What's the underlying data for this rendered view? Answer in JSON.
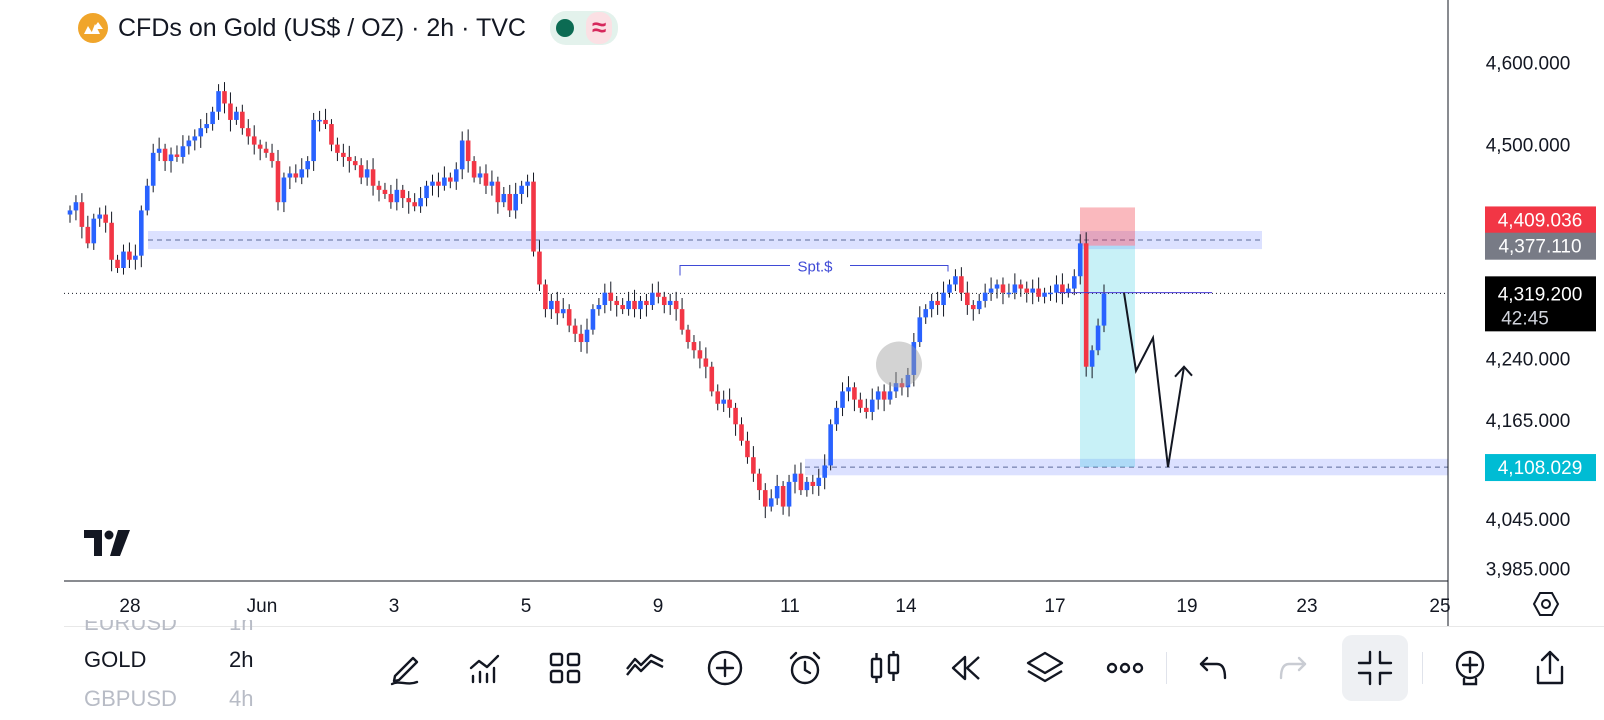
{
  "header": {
    "title": "CFDs on Gold (US$ / OZ) · 2h · TVC",
    "status_color": "#0c6b53",
    "wave_glyph": "≈"
  },
  "chart_data": {
    "type": "candlestick",
    "ylim": [
      3960,
      4640
    ],
    "price_ticks": [
      "4,600.000",
      "4,500.000",
      "4,240.000",
      "4,165.000",
      "4,045.000",
      "3,985.000"
    ],
    "price_tick_values": [
      4600,
      4500,
      4240,
      4165,
      4045,
      3985
    ],
    "date_ticks": [
      "28",
      "Jun",
      "3",
      "5",
      "9",
      "11",
      "14",
      "17",
      "19",
      "23",
      "25"
    ],
    "price_labels": [
      {
        "text": "4,409.036",
        "value": 4409.036,
        "color": "#f23645"
      },
      {
        "text": "4,377.110",
        "value": 4377.11,
        "color": "#787b86"
      },
      {
        "text": "4,108.029",
        "value": 4108.029,
        "color": "#00bcd4"
      }
    ],
    "last_price": {
      "text": "4,319.200",
      "countdown": "42:45",
      "value": 4319.2
    },
    "zones": [
      {
        "value_high": 4395,
        "value_low": 4373,
        "color": "#3d5afe"
      },
      {
        "value_high": 4118,
        "value_low": 4098,
        "color": "#3d5afe"
      }
    ],
    "annotation": {
      "text": "Spt.$",
      "value": 4353
    },
    "position": {
      "entry": 4377.11,
      "stop": 4409.036,
      "target": 4108.029
    },
    "projection": [
      4320,
      4225,
      4265,
      4108,
      4230
    ],
    "colors": {
      "up": "#2962ff",
      "down": "#f23645"
    },
    "candles": [
      4420,
      4430,
      4400,
      4380,
      4410,
      4415,
      4405,
      4360,
      4350,
      4370,
      4360,
      4365,
      4420,
      4450,
      4490,
      4495,
      4480,
      4488,
      4485,
      4498,
      4505,
      4510,
      4520,
      4525,
      4540,
      4565,
      4550,
      4530,
      4540,
      4520,
      4510,
      4500,
      4495,
      4490,
      4480,
      4430,
      4460,
      4465,
      4460,
      4470,
      4480,
      4530,
      4530,
      4525,
      4500,
      4490,
      4485,
      4480,
      4475,
      4460,
      4470,
      4450,
      4445,
      4440,
      4430,
      4445,
      4435,
      4430,
      4425,
      4435,
      4450,
      4455,
      4450,
      4460,
      4455,
      4470,
      4505,
      4480,
      4460,
      4465,
      4450,
      4455,
      4430,
      4440,
      4420,
      4440,
      4450,
      4455,
      4370,
      4330,
      4300,
      4310,
      4295,
      4300,
      4280,
      4270,
      4260,
      4275,
      4300,
      4305,
      4320,
      4310,
      4305,
      4300,
      4310,
      4300,
      4310,
      4305,
      4320,
      4315,
      4305,
      4310,
      4300,
      4275,
      4260,
      4250,
      4240,
      4230,
      4200,
      4185,
      4190,
      4180,
      4160,
      4140,
      4120,
      4100,
      4080,
      4060,
      4070,
      4085,
      4060,
      4090,
      4100,
      4080,
      4090,
      4085,
      4095,
      4110,
      4160,
      4180,
      4200,
      4205,
      4190,
      4180,
      4175,
      4190,
      4200,
      4190,
      4200,
      4210,
      4205,
      4220,
      4260,
      4290,
      4300,
      4310,
      4305,
      4320,
      4330,
      4340,
      4320,
      4305,
      4300,
      4310,
      4320,
      4325,
      4330,
      4320,
      4320,
      4330,
      4325,
      4320,
      4325,
      4315,
      4320,
      4320,
      4330,
      4320,
      4325,
      4340,
      4380,
      4230,
      4250,
      4280,
      4319
    ]
  },
  "bottom": {
    "symbols": [
      {
        "name": "EURUSD",
        "tf": "1h"
      },
      {
        "name": "GOLD",
        "tf": "2h"
      },
      {
        "name": "GBPUSD",
        "tf": "4h"
      }
    ]
  },
  "toolbar": {
    "icons": [
      "pencil-icon",
      "indicators-icon",
      "layout-grid-icon",
      "drawing-tools-icon",
      "add-icon",
      "alarm-icon",
      "candle-style-icon",
      "replay-icon",
      "layers-icon",
      "more-icon",
      "undo-icon",
      "redo-icon",
      "fullscreen-exit-icon",
      "add-alert-icon",
      "share-icon"
    ]
  }
}
